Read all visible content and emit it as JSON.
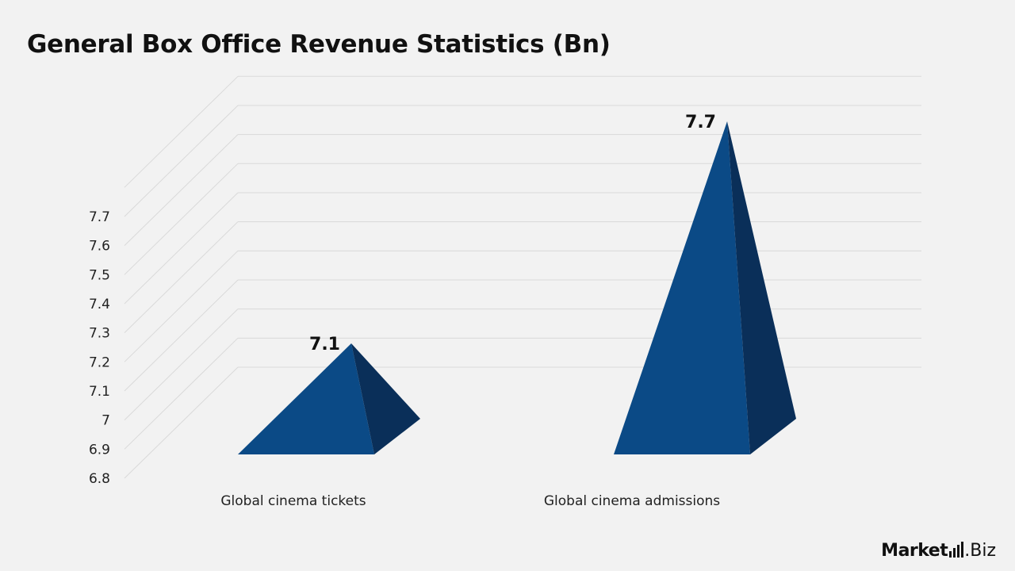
{
  "chart_data": {
    "type": "bar",
    "style": "3d-pyramid",
    "title": "General Box Office Revenue Statistics (Bn)",
    "categories": [
      "Global cinema tickets",
      "Global cinema admissions"
    ],
    "values": [
      7.1,
      7.7
    ],
    "data_labels": [
      "7.1",
      "7.7"
    ],
    "y_ticks": [
      "6.8",
      "6.9",
      "7",
      "7.1",
      "7.2",
      "7.3",
      "7.4",
      "7.5",
      "7.6",
      "7.7"
    ],
    "ylim": [
      6.8,
      7.7
    ],
    "grid": true,
    "legend": "none",
    "colors": {
      "front": "#0b4a86",
      "side": "#0a2f59",
      "grid": "#d9d9d9",
      "text": "#111111"
    }
  },
  "logo": {
    "brand": "Market",
    "suffix": ".Biz"
  }
}
